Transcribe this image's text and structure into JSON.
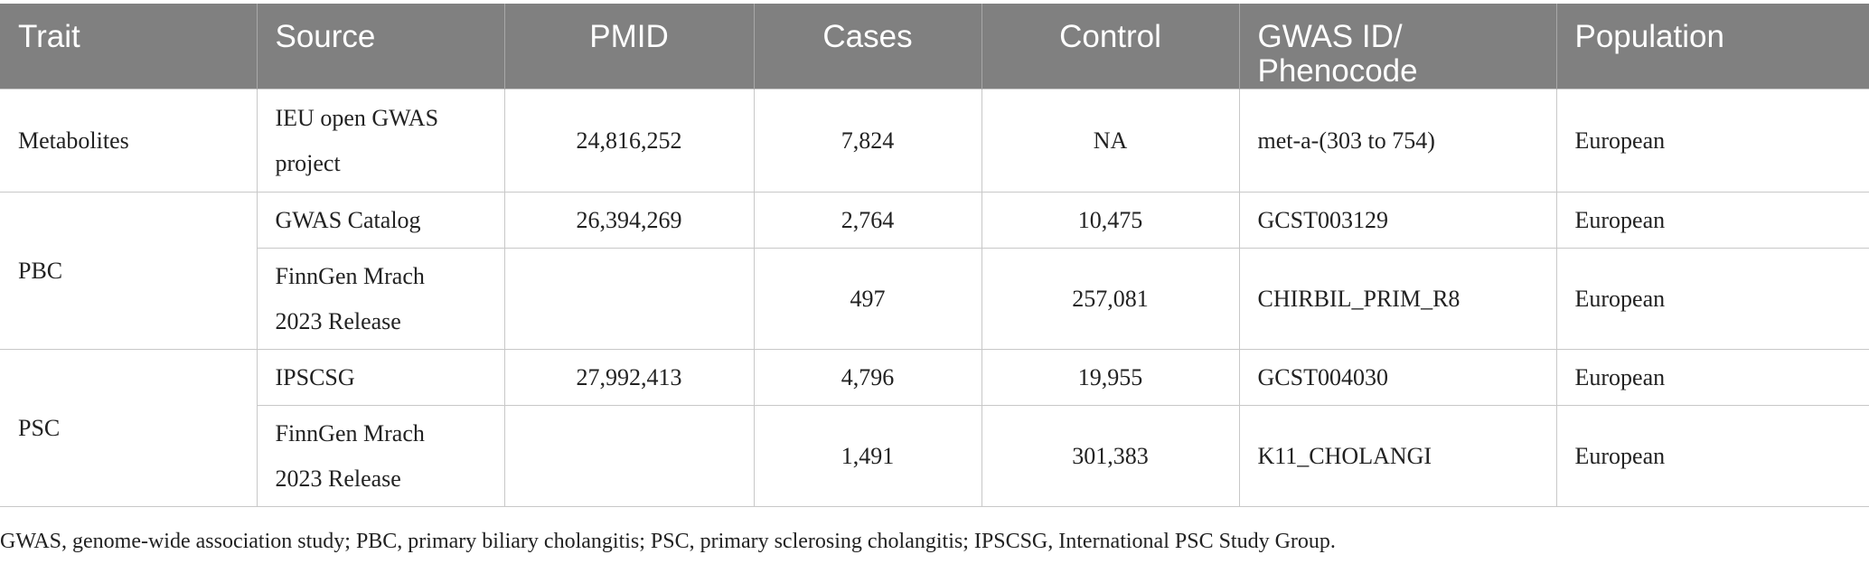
{
  "table": {
    "headers": {
      "trait": "Trait",
      "source": "Source",
      "pmid": "PMID",
      "cases": "Cases",
      "control": "Control",
      "gwas_id_line1": "GWAS ID/",
      "gwas_id_line2": "Phenocode",
      "population": "Population"
    },
    "rows": [
      {
        "trait": "Metabolites",
        "source_line1": "IEU open GWAS",
        "source_line2": "project",
        "pmid": "24,816,252",
        "cases": "7,824",
        "control": "NA",
        "gwas_id": "met-a-(303 to 754)",
        "population": "European"
      },
      {
        "trait": "PBC",
        "source": "GWAS Catalog",
        "pmid": "26,394,269",
        "cases": "2,764",
        "control": "10,475",
        "gwas_id": "GCST003129",
        "population": "European"
      },
      {
        "source_line1": "FinnGen Mrach",
        "source_line2": "2023 Release",
        "pmid": "",
        "cases": "497",
        "control": "257,081",
        "gwas_id": "CHIRBIL_PRIM_R8",
        "population": "European"
      },
      {
        "trait": "PSC",
        "source": "IPSCSG",
        "pmid": "27,992,413",
        "cases": "4,796",
        "control": "19,955",
        "gwas_id": "GCST004030",
        "population": "European"
      },
      {
        "source_line1": "FinnGen Mrach",
        "source_line2": "2023 Release",
        "pmid": "",
        "cases": "1,491",
        "control": "301,383",
        "gwas_id": "K11_CHOLANGI",
        "population": "European"
      }
    ]
  },
  "footnote": "GWAS, genome-wide association study; PBC, primary biliary cholangitis; PSC, primary sclerosing cholangitis; IPSCSG, International PSC Study Group."
}
